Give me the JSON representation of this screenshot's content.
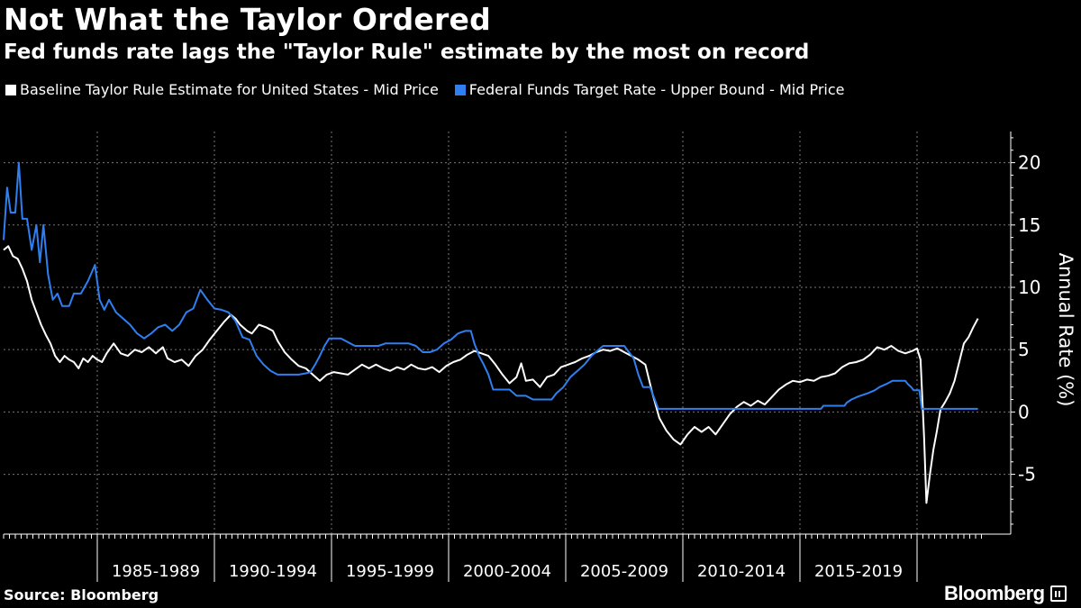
{
  "colors": {
    "background": "#000000",
    "taylor": "#ffffff",
    "fedfunds": "#2f7ff0",
    "grid": "#777777"
  },
  "header": {
    "title": "Not What the Taylor Ordered",
    "subtitle": "Fed funds rate lags the \"Taylor Rule\" estimate by the most on record"
  },
  "footer": {
    "source": "Source: Bloomberg",
    "brand": "Bloomberg",
    "brand_icon": "bloomberg-terminal-icon"
  },
  "chart_data": {
    "type": "line",
    "title": "Not What the Taylor Ordered",
    "subtitle": "Fed funds rate lags the \"Taylor Rule\" estimate by the most on record",
    "ylabel": "Annual Rate (%)",
    "xlim": [
      1981.0,
      2024.0
    ],
    "ylim": [
      -9.8,
      22.5
    ],
    "y_ticks": [
      -5,
      0,
      5,
      10,
      15,
      20
    ],
    "x_tick_labels": [
      "1985-1989",
      "1990-1994",
      "1995-1999",
      "2000-2004",
      "2005-2009",
      "2010-2014",
      "2015-2019"
    ],
    "x_tick_ranges": [
      [
        1985,
        1990
      ],
      [
        1990,
        1995
      ],
      [
        1995,
        2000
      ],
      [
        2000,
        2005
      ],
      [
        2005,
        2010
      ],
      [
        2010,
        2015
      ],
      [
        2015,
        2020
      ]
    ],
    "grid": true,
    "legend_position": "top-left",
    "series": [
      {
        "name": "Baseline Taylor Rule Estimate for United States - Mid Price",
        "color": "#ffffff",
        "points": [
          [
            1981.0,
            13.0
          ],
          [
            1981.2,
            13.3
          ],
          [
            1981.4,
            12.5
          ],
          [
            1981.6,
            12.3
          ],
          [
            1981.8,
            11.5
          ],
          [
            1982.0,
            10.5
          ],
          [
            1982.2,
            9.0
          ],
          [
            1982.4,
            8.0
          ],
          [
            1982.6,
            7.0
          ],
          [
            1982.8,
            6.2
          ],
          [
            1983.0,
            5.5
          ],
          [
            1983.2,
            4.5
          ],
          [
            1983.4,
            4.0
          ],
          [
            1983.6,
            4.5
          ],
          [
            1983.8,
            4.2
          ],
          [
            1984.0,
            4.0
          ],
          [
            1984.2,
            3.5
          ],
          [
            1984.4,
            4.3
          ],
          [
            1984.6,
            4.0
          ],
          [
            1984.8,
            4.5
          ],
          [
            1985.0,
            4.2
          ],
          [
            1985.2,
            4.0
          ],
          [
            1985.4,
            4.7
          ],
          [
            1985.7,
            5.5
          ],
          [
            1986.0,
            4.7
          ],
          [
            1986.3,
            4.5
          ],
          [
            1986.6,
            5.0
          ],
          [
            1986.9,
            4.8
          ],
          [
            1987.2,
            5.2
          ],
          [
            1987.5,
            4.7
          ],
          [
            1987.8,
            5.2
          ],
          [
            1988.0,
            4.3
          ],
          [
            1988.3,
            4.0
          ],
          [
            1988.6,
            4.2
          ],
          [
            1988.9,
            3.7
          ],
          [
            1989.2,
            4.5
          ],
          [
            1989.5,
            5.0
          ],
          [
            1989.8,
            5.8
          ],
          [
            1990.1,
            6.5
          ],
          [
            1990.4,
            7.2
          ],
          [
            1990.7,
            7.8
          ],
          [
            1990.9,
            7.5
          ],
          [
            1991.1,
            7.0
          ],
          [
            1991.4,
            6.5
          ],
          [
            1991.6,
            6.3
          ],
          [
            1991.9,
            7.0
          ],
          [
            1992.2,
            6.8
          ],
          [
            1992.5,
            6.5
          ],
          [
            1992.7,
            5.7
          ],
          [
            1993.0,
            4.8
          ],
          [
            1993.3,
            4.2
          ],
          [
            1993.6,
            3.7
          ],
          [
            1993.9,
            3.5
          ],
          [
            1994.2,
            3.0
          ],
          [
            1994.5,
            2.5
          ],
          [
            1994.8,
            3.0
          ],
          [
            1995.1,
            3.2
          ],
          [
            1995.4,
            3.1
          ],
          [
            1995.7,
            3.0
          ],
          [
            1996.0,
            3.4
          ],
          [
            1996.3,
            3.8
          ],
          [
            1996.6,
            3.5
          ],
          [
            1996.9,
            3.8
          ],
          [
            1997.2,
            3.5
          ],
          [
            1997.5,
            3.3
          ],
          [
            1997.8,
            3.6
          ],
          [
            1998.1,
            3.4
          ],
          [
            1998.4,
            3.8
          ],
          [
            1998.7,
            3.5
          ],
          [
            1999.0,
            3.4
          ],
          [
            1999.3,
            3.6
          ],
          [
            1999.6,
            3.2
          ],
          [
            1999.9,
            3.7
          ],
          [
            2000.2,
            4.0
          ],
          [
            2000.5,
            4.2
          ],
          [
            2000.8,
            4.6
          ],
          [
            2001.1,
            4.9
          ],
          [
            2001.4,
            4.7
          ],
          [
            2001.7,
            4.5
          ],
          [
            2002.0,
            3.8
          ],
          [
            2002.3,
            3.0
          ],
          [
            2002.6,
            2.3
          ],
          [
            2002.9,
            2.8
          ],
          [
            2003.1,
            3.9
          ],
          [
            2003.3,
            2.5
          ],
          [
            2003.6,
            2.6
          ],
          [
            2003.9,
            2.0
          ],
          [
            2004.2,
            2.8
          ],
          [
            2004.5,
            3.0
          ],
          [
            2004.8,
            3.6
          ],
          [
            2005.1,
            3.8
          ],
          [
            2005.4,
            4.0
          ],
          [
            2005.7,
            4.3
          ],
          [
            2006.0,
            4.5
          ],
          [
            2006.3,
            4.8
          ],
          [
            2006.6,
            5.0
          ],
          [
            2006.9,
            4.9
          ],
          [
            2007.2,
            5.1
          ],
          [
            2007.5,
            4.8
          ],
          [
            2007.8,
            4.5
          ],
          [
            2008.1,
            4.2
          ],
          [
            2008.4,
            3.8
          ],
          [
            2008.7,
            1.5
          ],
          [
            2009.0,
            -0.5
          ],
          [
            2009.3,
            -1.5
          ],
          [
            2009.6,
            -2.2
          ],
          [
            2009.9,
            -2.6
          ],
          [
            2010.2,
            -1.8
          ],
          [
            2010.5,
            -1.2
          ],
          [
            2010.8,
            -1.6
          ],
          [
            2011.1,
            -1.2
          ],
          [
            2011.4,
            -1.8
          ],
          [
            2011.7,
            -1.0
          ],
          [
            2012.0,
            -0.2
          ],
          [
            2012.3,
            0.4
          ],
          [
            2012.6,
            0.8
          ],
          [
            2012.9,
            0.5
          ],
          [
            2013.2,
            0.9
          ],
          [
            2013.5,
            0.6
          ],
          [
            2013.8,
            1.2
          ],
          [
            2014.1,
            1.8
          ],
          [
            2014.4,
            2.2
          ],
          [
            2014.7,
            2.5
          ],
          [
            2015.0,
            2.4
          ],
          [
            2015.3,
            2.6
          ],
          [
            2015.6,
            2.5
          ],
          [
            2015.9,
            2.8
          ],
          [
            2016.2,
            2.9
          ],
          [
            2016.5,
            3.1
          ],
          [
            2016.8,
            3.6
          ],
          [
            2017.1,
            3.9
          ],
          [
            2017.4,
            4.0
          ],
          [
            2017.7,
            4.2
          ],
          [
            2018.0,
            4.6
          ],
          [
            2018.3,
            5.2
          ],
          [
            2018.6,
            5.0
          ],
          [
            2018.9,
            5.3
          ],
          [
            2019.2,
            4.9
          ],
          [
            2019.5,
            4.7
          ],
          [
            2019.8,
            4.9
          ],
          [
            2020.0,
            5.1
          ],
          [
            2020.15,
            4.2
          ],
          [
            2020.3,
            -2.0
          ],
          [
            2020.4,
            -7.3
          ],
          [
            2020.55,
            -5.0
          ],
          [
            2020.7,
            -3.0
          ],
          [
            2020.85,
            -1.5
          ],
          [
            2021.0,
            0.2
          ],
          [
            2021.2,
            0.8
          ],
          [
            2021.4,
            1.5
          ],
          [
            2021.6,
            2.5
          ],
          [
            2021.8,
            4.0
          ],
          [
            2022.0,
            5.5
          ],
          [
            2022.2,
            6.0
          ],
          [
            2022.4,
            6.8
          ],
          [
            2022.6,
            7.5
          ]
        ]
      },
      {
        "name": "Federal Funds Target Rate - Upper Bound - Mid Price",
        "color": "#2f7ff0",
        "points": [
          [
            1981.0,
            13.8
          ],
          [
            1981.15,
            18.0
          ],
          [
            1981.3,
            16.0
          ],
          [
            1981.5,
            16.0
          ],
          [
            1981.65,
            20.0
          ],
          [
            1981.8,
            15.5
          ],
          [
            1982.0,
            15.5
          ],
          [
            1982.2,
            13.0
          ],
          [
            1982.4,
            15.0
          ],
          [
            1982.55,
            12.0
          ],
          [
            1982.7,
            15.0
          ],
          [
            1982.9,
            11.0
          ],
          [
            1983.1,
            9.0
          ],
          [
            1983.3,
            9.5
          ],
          [
            1983.5,
            8.5
          ],
          [
            1983.8,
            8.5
          ],
          [
            1984.0,
            9.5
          ],
          [
            1984.3,
            9.5
          ],
          [
            1984.6,
            10.5
          ],
          [
            1984.9,
            11.8
          ],
          [
            1985.1,
            9.0
          ],
          [
            1985.3,
            8.2
          ],
          [
            1985.5,
            9.0
          ],
          [
            1985.8,
            8.0
          ],
          [
            1986.1,
            7.5
          ],
          [
            1986.4,
            7.0
          ],
          [
            1986.7,
            6.3
          ],
          [
            1987.0,
            5.9
          ],
          [
            1987.3,
            6.3
          ],
          [
            1987.6,
            6.8
          ],
          [
            1987.9,
            7.0
          ],
          [
            1988.2,
            6.5
          ],
          [
            1988.5,
            7.0
          ],
          [
            1988.8,
            8.0
          ],
          [
            1989.1,
            8.3
          ],
          [
            1989.4,
            9.8
          ],
          [
            1989.7,
            9.0
          ],
          [
            1990.0,
            8.3
          ],
          [
            1990.3,
            8.2
          ],
          [
            1990.6,
            8.0
          ],
          [
            1990.9,
            7.3
          ],
          [
            1991.2,
            6.0
          ],
          [
            1991.5,
            5.8
          ],
          [
            1991.8,
            4.5
          ],
          [
            1992.1,
            3.8
          ],
          [
            1992.4,
            3.3
          ],
          [
            1992.7,
            3.0
          ],
          [
            1993.0,
            3.0
          ],
          [
            1993.3,
            3.0
          ],
          [
            1993.6,
            3.0
          ],
          [
            1993.9,
            3.1
          ],
          [
            1994.1,
            3.2
          ],
          [
            1994.3,
            3.8
          ],
          [
            1994.5,
            4.5
          ],
          [
            1994.7,
            5.3
          ],
          [
            1994.9,
            5.9
          ],
          [
            1995.1,
            5.9
          ],
          [
            1995.4,
            5.9
          ],
          [
            1995.7,
            5.6
          ],
          [
            1996.0,
            5.3
          ],
          [
            1996.5,
            5.3
          ],
          [
            1997.0,
            5.3
          ],
          [
            1997.3,
            5.5
          ],
          [
            1997.8,
            5.5
          ],
          [
            1998.3,
            5.5
          ],
          [
            1998.6,
            5.3
          ],
          [
            1998.9,
            4.8
          ],
          [
            1999.2,
            4.8
          ],
          [
            1999.5,
            5.0
          ],
          [
            1999.8,
            5.5
          ],
          [
            2000.1,
            5.8
          ],
          [
            2000.4,
            6.3
          ],
          [
            2000.7,
            6.5
          ],
          [
            2000.95,
            6.5
          ],
          [
            2001.1,
            5.5
          ],
          [
            2001.3,
            4.5
          ],
          [
            2001.5,
            3.8
          ],
          [
            2001.7,
            3.0
          ],
          [
            2001.9,
            1.8
          ],
          [
            2002.3,
            1.8
          ],
          [
            2002.6,
            1.8
          ],
          [
            2002.9,
            1.3
          ],
          [
            2003.3,
            1.3
          ],
          [
            2003.6,
            1.0
          ],
          [
            2004.0,
            1.0
          ],
          [
            2004.4,
            1.0
          ],
          [
            2004.6,
            1.5
          ],
          [
            2004.9,
            2.0
          ],
          [
            2005.2,
            2.8
          ],
          [
            2005.5,
            3.3
          ],
          [
            2005.8,
            3.8
          ],
          [
            2006.1,
            4.5
          ],
          [
            2006.4,
            5.0
          ],
          [
            2006.6,
            5.3
          ],
          [
            2007.0,
            5.3
          ],
          [
            2007.5,
            5.3
          ],
          [
            2007.7,
            4.8
          ],
          [
            2007.9,
            4.3
          ],
          [
            2008.1,
            3.0
          ],
          [
            2008.3,
            2.0
          ],
          [
            2008.6,
            2.0
          ],
          [
            2008.8,
            1.0
          ],
          [
            2008.95,
            0.25
          ],
          [
            2010.0,
            0.25
          ],
          [
            2012.0,
            0.25
          ],
          [
            2014.0,
            0.25
          ],
          [
            2015.9,
            0.25
          ],
          [
            2016.0,
            0.5
          ],
          [
            2016.9,
            0.5
          ],
          [
            2017.0,
            0.75
          ],
          [
            2017.2,
            1.0
          ],
          [
            2017.5,
            1.25
          ],
          [
            2017.9,
            1.5
          ],
          [
            2018.2,
            1.75
          ],
          [
            2018.4,
            2.0
          ],
          [
            2018.7,
            2.25
          ],
          [
            2018.95,
            2.5
          ],
          [
            2019.5,
            2.5
          ],
          [
            2019.6,
            2.25
          ],
          [
            2019.75,
            2.0
          ],
          [
            2019.85,
            1.75
          ],
          [
            2020.1,
            1.75
          ],
          [
            2020.15,
            1.0
          ],
          [
            2020.2,
            0.25
          ],
          [
            2022.6,
            0.25
          ]
        ]
      }
    ]
  }
}
